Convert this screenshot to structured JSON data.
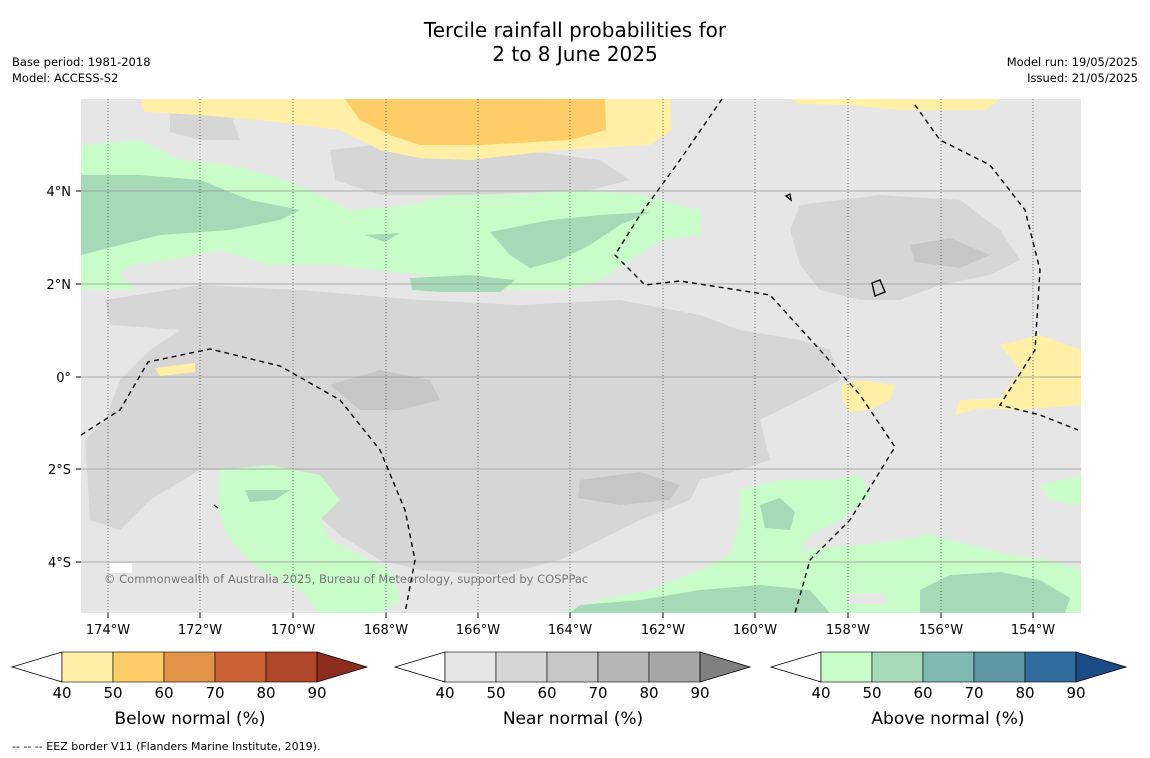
{
  "title_line1": "Tercile rainfall probabilities for",
  "title_line2": "2 to 8 June 2025",
  "base_period": "Base period: 1981-2018",
  "model": "Model: ACCESS-S2",
  "model_run": "Model run: 19/05/2025",
  "issued": "Issued: 21/05/2025",
  "credit": "© Commonwealth of Australia 2025, Bureau of Meteorology, supported by COSPPac",
  "footer": "--  --  -- EEZ border V11 (Flanders Marine Institute, 2019).",
  "map": {
    "lon_labels": [
      "174°W",
      "172°W",
      "170°W",
      "168°W",
      "166°W",
      "164°W",
      "162°W",
      "160°W",
      "158°W",
      "156°W",
      "154°W"
    ],
    "lat_labels": [
      "4°N",
      "2°N",
      "0°",
      "2°S",
      "4°S"
    ]
  },
  "colorbars": [
    {
      "label": "Below normal (%)",
      "ticks": [
        "40",
        "50",
        "60",
        "70",
        "80",
        "90"
      ],
      "colors": [
        "#fff0a6",
        "#fecd68",
        "#e19447",
        "#cd6335",
        "#b0472a",
        "#8c2d1f"
      ]
    },
    {
      "label": "Near normal (%)",
      "ticks": [
        "40",
        "50",
        "60",
        "70",
        "80",
        "90"
      ],
      "colors": [
        "#e6e6e6",
        "#d6d6d6",
        "#c6c6c6",
        "#b6b6b6",
        "#a6a6a6",
        "#808080"
      ]
    },
    {
      "label": "Above normal (%)",
      "ticks": [
        "40",
        "50",
        "60",
        "70",
        "80",
        "90"
      ],
      "colors": [
        "#c8fcc8",
        "#a6d9b8",
        "#80b8b3",
        "#5f96a3",
        "#316c9f",
        "#1b4c85"
      ]
    }
  ]
}
